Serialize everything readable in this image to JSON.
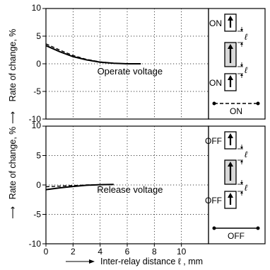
{
  "chart_data": [
    {
      "type": "line",
      "annotation": "Operate voltage",
      "ylabel": "Rate of change, %",
      "ylim": [
        -10,
        10
      ],
      "xlim": [
        0,
        12
      ],
      "yticks": [
        "10",
        "5",
        "0",
        "-5",
        "-10"
      ],
      "series": [
        {
          "style": "solid",
          "x": [
            0,
            1,
            2,
            3,
            4,
            5,
            6,
            7
          ],
          "y": [
            3.3,
            2.2,
            1.3,
            0.7,
            0.3,
            0.1,
            0.0,
            0.0
          ]
        },
        {
          "style": "dashed",
          "x": [
            0,
            1,
            2,
            3,
            4,
            5,
            6,
            7
          ],
          "y": [
            3.6,
            2.5,
            1.5,
            0.8,
            0.35,
            0.1,
            0.0,
            0.0
          ]
        }
      ],
      "legend": {
        "top": "ON",
        "middle": "",
        "bottom": "ON",
        "line_style": "dashed",
        "line_label": "ON",
        "gap_symbol": "ℓ"
      }
    },
    {
      "type": "line",
      "annotation": "Release voltage",
      "ylabel": "Rate of change, %",
      "xlabel": "Inter-relay distance  ℓ , mm",
      "ylim": [
        -10,
        10
      ],
      "xlim": [
        0,
        12
      ],
      "yticks": [
        "10",
        "5",
        "0",
        "-5",
        "-10"
      ],
      "xticks": [
        "0",
        "2",
        "4",
        "6",
        "8",
        "10"
      ],
      "series": [
        {
          "style": "solid",
          "x": [
            0,
            1,
            2,
            3,
            4,
            5
          ],
          "y": [
            -0.8,
            -0.5,
            -0.25,
            -0.05,
            0.05,
            0.1
          ]
        },
        {
          "style": "dashed",
          "x": [
            0,
            1,
            2,
            3,
            4,
            5
          ],
          "y": [
            -0.3,
            -0.2,
            -0.1,
            0.0,
            0.05,
            0.1
          ]
        }
      ],
      "legend": {
        "top": "OFF",
        "middle": "",
        "bottom": "OFF",
        "line_style": "solid",
        "line_label": "OFF",
        "gap_symbol": "ℓ"
      }
    }
  ]
}
